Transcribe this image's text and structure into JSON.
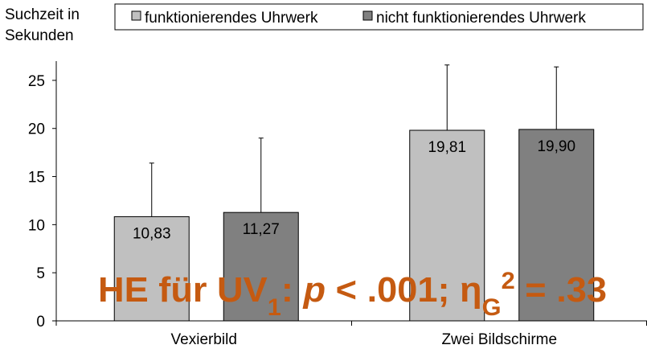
{
  "chart_data": {
    "type": "bar",
    "ylabel_lines": [
      "Suchzeit in",
      "Sekunden"
    ],
    "categories": [
      "Vexierbild",
      "Zwei Bildschirme"
    ],
    "series": [
      {
        "name": "funktionierendes Uhrwerk",
        "color": "#c0c0c0",
        "values": [
          10.83,
          19.81
        ],
        "value_labels": [
          "10,83",
          "19,81"
        ],
        "errors": [
          5.57,
          6.79
        ]
      },
      {
        "name": "nicht funktionierendes Uhrwerk",
        "color": "#808080",
        "values": [
          11.27,
          19.9
        ],
        "value_labels": [
          "11,27",
          "19,90"
        ],
        "errors": [
          7.73,
          6.5
        ]
      }
    ],
    "ylim": [
      0,
      27
    ],
    "yticks": [
      0,
      5,
      10,
      15,
      20,
      25
    ],
    "annotation": [
      "HE für UV",
      "1",
      ": ",
      "p",
      " < .001; η",
      "G",
      "2",
      " = .33"
    ]
  }
}
